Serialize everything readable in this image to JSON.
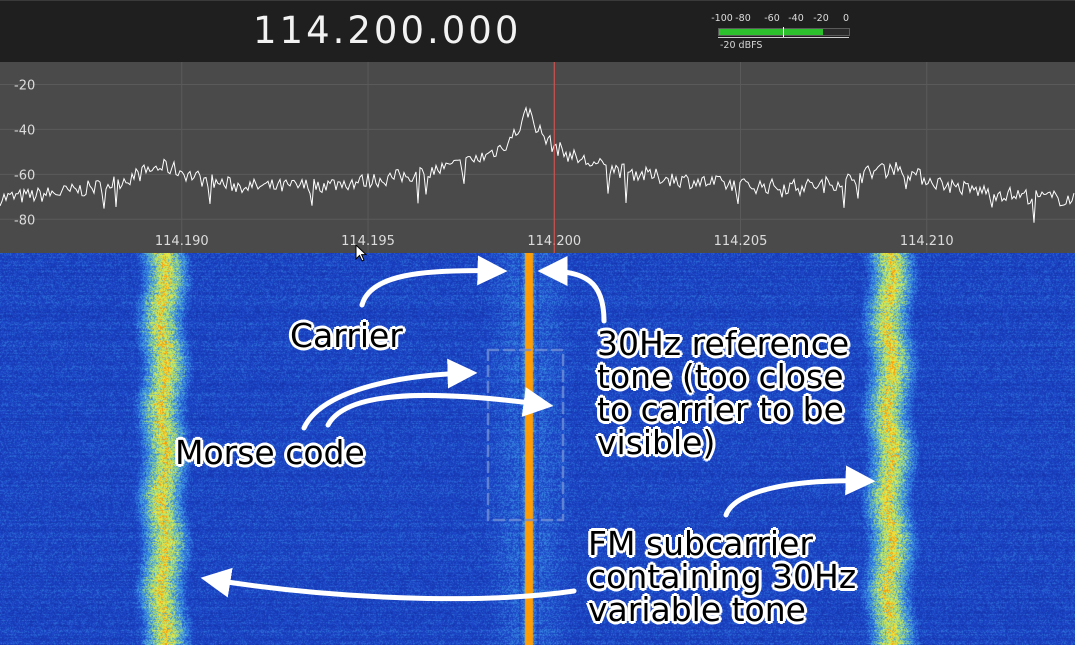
{
  "header": {
    "frequency": "114.200.000",
    "meter": {
      "ticks": [
        "-100",
        "-80",
        "-60",
        "-40",
        "-20",
        "0"
      ],
      "level_label": "-20 dBFS",
      "level_fraction": 0.8,
      "marker_fraction": 0.49
    }
  },
  "spectrum": {
    "y_axis": {
      "ticks": [
        "-20",
        "-40",
        "-60",
        "-80"
      ],
      "values": [
        -20,
        -40,
        -60,
        -80
      ],
      "range": [
        -10,
        -95
      ]
    },
    "x_axis": {
      "ticks": [
        "114.190",
        "114.195",
        "114.200",
        "114.205",
        "114.210"
      ],
      "values": [
        114.19,
        114.195,
        114.2,
        114.205,
        114.21
      ],
      "range": [
        114.18512,
        114.21398
      ]
    },
    "center_marker": 114.2,
    "noise_floor_db": -83,
    "peaks": [
      {
        "freq": 114.1895,
        "db": -57,
        "width": 0.0006
      },
      {
        "freq": 114.1993,
        "db": -32,
        "width": 0.00012
      },
      {
        "freq": 114.209,
        "db": -57,
        "width": 0.0006
      }
    ],
    "colors": {
      "background": "#4a4a4a",
      "trace": "#ffffff",
      "marker": "#e05050",
      "grid": "#5a5a5a"
    }
  },
  "waterfall": {
    "colors": {
      "floor": "#1a3fb0",
      "band": "#e8f04a",
      "carrier": "#ff9a00"
    },
    "sidebands": [
      114.1895,
      114.209
    ],
    "carrier": 114.1993
  },
  "annotations": {
    "carrier": "Carrier",
    "reference_tone": "30Hz reference\ntone (too close\nto carrier to be\nvisible)",
    "morse": "Morse code",
    "fm_subcarrier": "FM subcarrier\ncontaining 30Hz\nvariable tone"
  }
}
